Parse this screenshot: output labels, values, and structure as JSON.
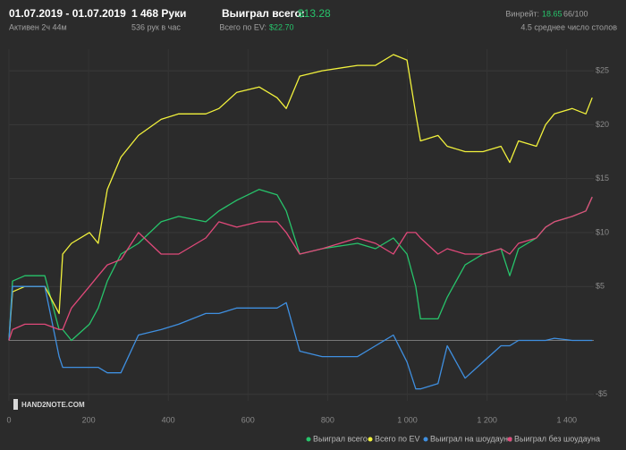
{
  "header": {
    "date_range": "01.07.2019 - 01.07.2019",
    "active": "Активен 2ч 44м",
    "hands": "1 468 Руки",
    "hands_per_hour": "536 рук в час",
    "won_label": "Выиграл всего:",
    "won_value": "$13.28",
    "ev_label": "Всего по EV:",
    "ev_value": "$22.70",
    "winrate_label": "Винрейт:",
    "winrate_value": "18.65",
    "winrate_sample": "66/100",
    "tables": "4.5 среднее число столов"
  },
  "watermark": "HAND2NOTE.COM",
  "chart_data": {
    "type": "line",
    "x": [
      0,
      9,
      40,
      90,
      126,
      135,
      157,
      202,
      224,
      247,
      281,
      325,
      382,
      426,
      494,
      527,
      572,
      628,
      673,
      696,
      730,
      786,
      875,
      920,
      965,
      999,
      1021,
      1033,
      1077,
      1100,
      1145,
      1190,
      1235,
      1257,
      1279,
      1324,
      1347,
      1369,
      1414,
      1448,
      1464
    ],
    "series": [
      {
        "name": "Выиграл всего",
        "color": "#27c46b",
        "values": [
          0,
          5.5,
          6,
          6,
          1,
          1,
          0,
          1.5,
          3,
          5.5,
          8,
          9,
          11,
          11.5,
          11,
          12,
          13,
          14,
          13.5,
          12,
          8,
          8.5,
          9,
          8.5,
          9.5,
          8,
          5,
          2,
          2,
          4,
          7,
          8,
          8.5,
          6,
          8.5,
          9.5,
          10.5,
          11,
          11.5,
          12,
          13.3
        ]
      },
      {
        "name": "Всего по EV",
        "color": "#f2f23c",
        "values": [
          0,
          4.5,
          5,
          5,
          2.5,
          8,
          9,
          10,
          9,
          14,
          17,
          19,
          20.5,
          21,
          21,
          21.5,
          23,
          23.5,
          22.5,
          21.5,
          24.5,
          25,
          25.5,
          25.5,
          26.5,
          26,
          21,
          18.5,
          19,
          18,
          17.5,
          17.5,
          18,
          16.5,
          18.5,
          18,
          20,
          21,
          21.5,
          21,
          22.5
        ]
      },
      {
        "name": "Выиграл на шоудауне",
        "color": "#3f8fe0",
        "values": [
          0,
          5,
          5,
          5,
          -1.5,
          -2.5,
          -2.5,
          -2.5,
          -2.5,
          -3,
          -3,
          0.5,
          1,
          1.5,
          2.5,
          2.5,
          3,
          3,
          3,
          3.5,
          -1,
          -1.5,
          -1.5,
          -0.5,
          0.5,
          -2,
          -4.5,
          -4.5,
          -4,
          -0.5,
          -3.5,
          -2,
          -0.5,
          -0.5,
          0,
          0,
          0,
          0.2,
          0,
          0,
          0
        ]
      },
      {
        "name": "Выиграл без шоудауна",
        "color": "#e0497a",
        "values": [
          0,
          1,
          1.5,
          1.5,
          1,
          1,
          3,
          5,
          6,
          7,
          7.5,
          10,
          8,
          8,
          9.5,
          11,
          10.5,
          11,
          11,
          10,
          8,
          8.5,
          9.5,
          9,
          8,
          10,
          10,
          9.5,
          8,
          8.5,
          8,
          8,
          8.5,
          8,
          9,
          9.5,
          10.5,
          11,
          11.5,
          12,
          13.3
        ]
      }
    ],
    "xlim": [
      0,
      1468
    ],
    "ylim": [
      -5.6,
      27
    ],
    "xticks": [
      0,
      200,
      400,
      600,
      800,
      {
        "value": 1000,
        "label": "1 000"
      },
      {
        "value": 1200,
        "label": "1 200"
      },
      {
        "value": 1400,
        "label": "1 400"
      }
    ],
    "yticks": [
      {
        "value": -5,
        "label": "-$5"
      },
      {
        "value": 5,
        "label": "$5"
      },
      {
        "value": 10,
        "label": "$10"
      },
      {
        "value": 15,
        "label": "$15"
      },
      {
        "value": 20,
        "label": "$20"
      },
      {
        "value": 25,
        "label": "$25"
      }
    ],
    "grid": true
  }
}
